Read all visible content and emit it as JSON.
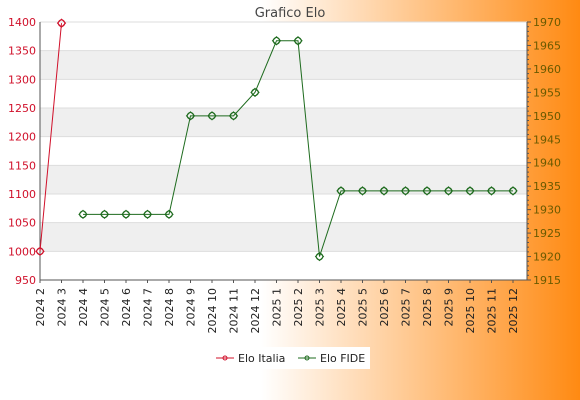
{
  "chart_data": {
    "type": "line",
    "title": "Grafico Elo",
    "categories": [
      "2024 2",
      "2024 3",
      "2024 4",
      "2024 5",
      "2024 6",
      "2024 7",
      "2024 8",
      "2024 9",
      "2024 10",
      "2024 11",
      "2024 12",
      "2025 1",
      "2025 2",
      "2025 3",
      "2025 4",
      "2025 5",
      "2025 6",
      "2025 7",
      "2025 8",
      "2025 9",
      "2025 10",
      "2025 11",
      "2025 12"
    ],
    "y_left": {
      "min": 950,
      "max": 1400,
      "ticks": [
        950,
        1000,
        1050,
        1100,
        1150,
        1200,
        1250,
        1300,
        1350,
        1400
      ],
      "tick_labels": [
        "950",
        "1000",
        "1050",
        "1100",
        "1150",
        "1200",
        "1250",
        "1300",
        "1350",
        "1400"
      ]
    },
    "y_right": {
      "min": 1915,
      "max": 1970,
      "ticks": [
        1915,
        1920,
        1925,
        1930,
        1935,
        1940,
        1945,
        1950,
        1955,
        1960,
        1965,
        1970
      ],
      "tick_labels": [
        "1915",
        "1920",
        "1925",
        "1930",
        "1935",
        "1940",
        "1945",
        "1950",
        "1955",
        "1960",
        "1965",
        "1970"
      ]
    },
    "grid": true,
    "legend_position": "bottom",
    "series": [
      {
        "name": "Elo Italia",
        "axis": "left",
        "color": "#d0102a",
        "values": [
          1000,
          1398,
          null,
          null,
          null,
          null,
          null,
          null,
          null,
          null,
          null,
          null,
          null,
          null,
          null,
          null,
          null,
          null,
          null,
          null,
          null,
          null,
          null
        ]
      },
      {
        "name": "Elo FIDE",
        "axis": "right",
        "color": "#1e6b1e",
        "values": [
          null,
          null,
          1929,
          1929,
          1929,
          1929,
          1929,
          1950,
          1950,
          1950,
          1955,
          1966,
          1966,
          1920,
          1934,
          1934,
          1934,
          1934,
          1934,
          1934,
          1934,
          1934,
          1934
        ]
      }
    ]
  },
  "colors": {
    "left_axis_text": "#d0102a",
    "right_axis_text": "#6a5a00",
    "background_start": "#ffffff",
    "background_end": "#ff8c1a"
  }
}
